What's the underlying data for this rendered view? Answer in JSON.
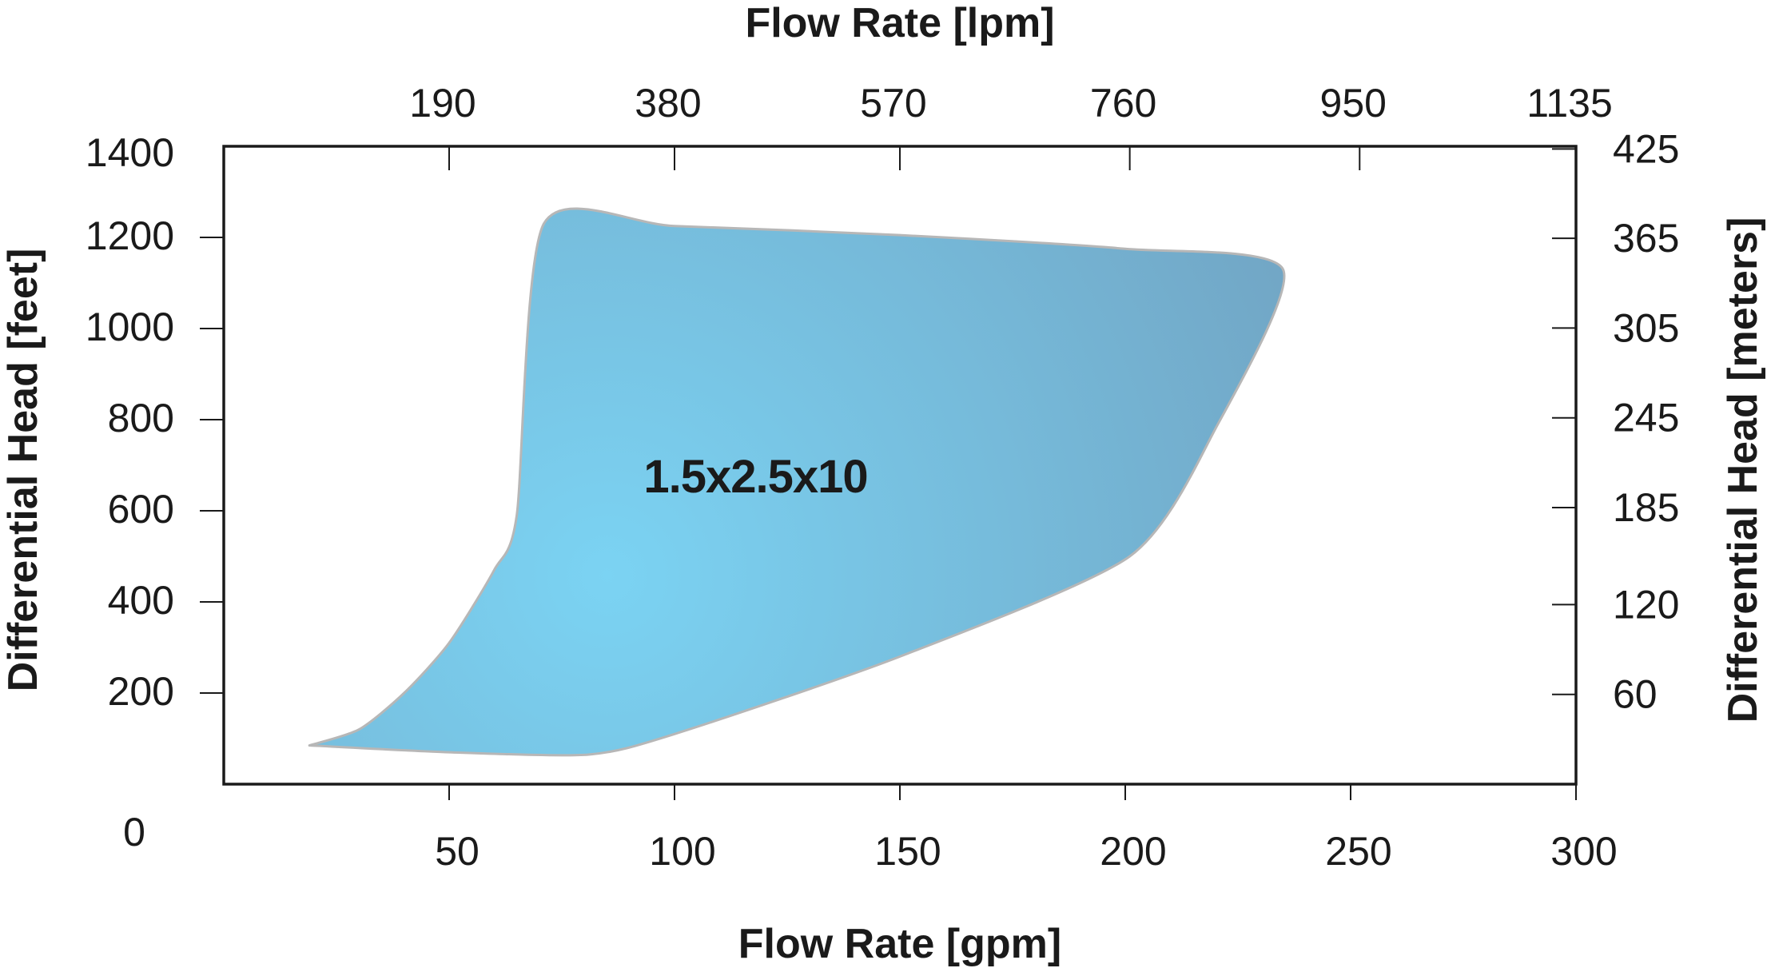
{
  "chart_data": {
    "type": "area",
    "title": "",
    "x_bottom": {
      "label": "Flow Rate [gpm]",
      "ticks": [
        50,
        100,
        150,
        200,
        250,
        300
      ],
      "range": [
        0,
        300
      ]
    },
    "x_top": {
      "label": "Flow Rate [lpm]",
      "ticks": [
        {
          "value": 190,
          "gpm": 50
        },
        {
          "value": 380,
          "gpm": 100
        },
        {
          "value": 570,
          "gpm": 150
        },
        {
          "value": 760,
          "gpm": 201
        },
        {
          "value": 950,
          "gpm": 252
        },
        {
          "value": 1135,
          "gpm": 300
        }
      ]
    },
    "y_left": {
      "label": "Differential Head [feet]",
      "ticks": [
        0,
        200,
        400,
        600,
        800,
        1000,
        1200,
        1400
      ],
      "range": [
        0,
        1400
      ]
    },
    "y_right": {
      "label": "Differential Head [meters]",
      "ticks": [
        {
          "value": 60,
          "feet": 197
        },
        {
          "value": 120,
          "feet": 394
        },
        {
          "value": 185,
          "feet": 607
        },
        {
          "value": 245,
          "feet": 804
        },
        {
          "value": 305,
          "feet": 1001
        },
        {
          "value": 365,
          "feet": 1198
        },
        {
          "value": 425,
          "feet": 1394
        }
      ]
    },
    "grid": false,
    "series": [
      {
        "name": "1.5x2.5x10",
        "label_at": {
          "x": 118,
          "y": 640
        },
        "boundary": [
          {
            "x": 19,
            "y": 85
          },
          {
            "x": 30,
            "y": 120
          },
          {
            "x": 40,
            "y": 200
          },
          {
            "x": 50,
            "y": 310
          },
          {
            "x": 60,
            "y": 470
          },
          {
            "x": 65,
            "y": 590
          },
          {
            "x": 71,
            "y": 1230
          },
          {
            "x": 100,
            "y": 1225
          },
          {
            "x": 150,
            "y": 1205
          },
          {
            "x": 200,
            "y": 1175
          },
          {
            "x": 235,
            "y": 1130
          },
          {
            "x": 220,
            "y": 780
          },
          {
            "x": 201,
            "y": 500
          },
          {
            "x": 150,
            "y": 280
          },
          {
            "x": 100,
            "y": 110
          },
          {
            "x": 81,
            "y": 65
          },
          {
            "x": 50,
            "y": 70
          },
          {
            "x": 19,
            "y": 85
          }
        ]
      }
    ],
    "colors": {
      "fill_center": "#7bd3f3",
      "fill_edge": "#71a3c2",
      "stroke": "#b7b7b7",
      "frame": "#1a1a1a"
    }
  }
}
